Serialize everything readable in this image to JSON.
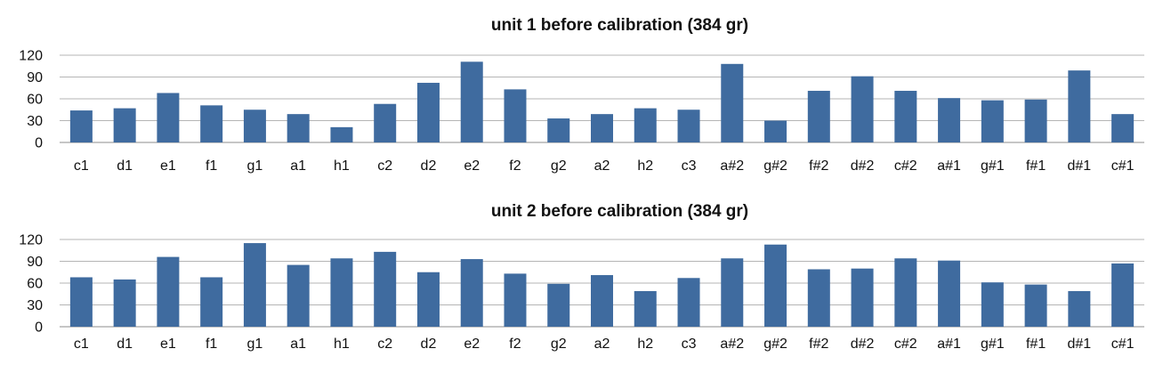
{
  "chart_data": [
    {
      "type": "bar",
      "title": "unit 1 before calibration (384 gr)",
      "categories": [
        "c1",
        "d1",
        "e1",
        "f1",
        "g1",
        "a1",
        "h1",
        "c2",
        "d2",
        "e2",
        "f2",
        "g2",
        "a2",
        "h2",
        "c3",
        "a#2",
        "g#2",
        "f#2",
        "d#2",
        "c#2",
        "a#1",
        "g#1",
        "f#1",
        "d#1",
        "c#1"
      ],
      "values": [
        44,
        47,
        68,
        51,
        45,
        39,
        21,
        53,
        82,
        111,
        73,
        33,
        39,
        47,
        45,
        108,
        30,
        71,
        91,
        71,
        61,
        58,
        59,
        99,
        39
      ],
      "ylim": [
        0,
        120
      ],
      "yticks": [
        0,
        30,
        60,
        90,
        120
      ],
      "grid": true,
      "color": "#3f6b9f"
    },
    {
      "type": "bar",
      "title": "unit 2 before calibration (384 gr)",
      "categories": [
        "c1",
        "d1",
        "e1",
        "f1",
        "g1",
        "a1",
        "h1",
        "c2",
        "d2",
        "e2",
        "f2",
        "g2",
        "a2",
        "h2",
        "c3",
        "a#2",
        "g#2",
        "f#2",
        "d#2",
        "c#2",
        "a#1",
        "g#1",
        "f#1",
        "d#1",
        "c#1"
      ],
      "values": [
        68,
        65,
        96,
        68,
        115,
        85,
        94,
        103,
        75,
        93,
        73,
        59,
        71,
        49,
        67,
        94,
        113,
        79,
        80,
        94,
        91,
        61,
        58,
        49,
        87
      ],
      "ylim": [
        0,
        120
      ],
      "yticks": [
        0,
        30,
        60,
        90,
        120
      ],
      "grid": true,
      "color": "#3f6b9f"
    }
  ]
}
